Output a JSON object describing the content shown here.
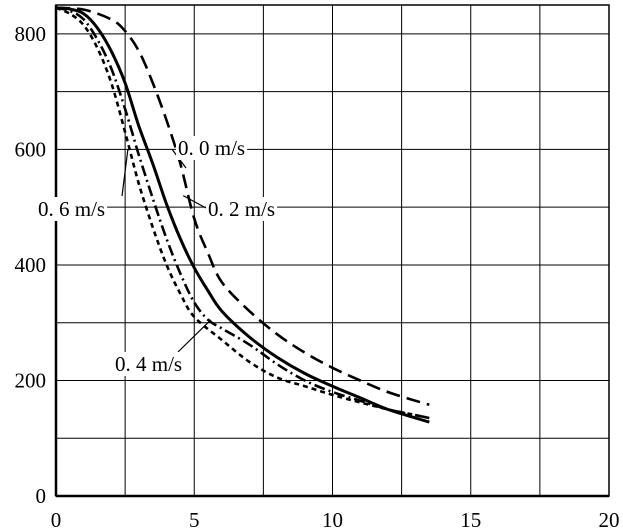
{
  "chart_data": {
    "type": "line",
    "title": "",
    "xlabel": "",
    "ylabel": "",
    "xlim": [
      0,
      20
    ],
    "ylim": [
      0,
      850
    ],
    "grid": true,
    "legend": "inline labels with leader lines",
    "x_ticks": [
      "0",
      "5",
      "10",
      "15",
      "20"
    ],
    "y_ticks": [
      "0",
      "200",
      "400",
      "600",
      "800"
    ],
    "series": [
      {
        "name": "0. 0 m/s",
        "style": "long-dash",
        "color": "#000000",
        "points": [
          [
            0,
            845
          ],
          [
            1,
            842
          ],
          [
            2,
            825
          ],
          [
            2.5,
            805
          ],
          [
            3,
            770
          ],
          [
            3.5,
            715
          ],
          [
            4,
            650
          ],
          [
            4.5,
            575
          ],
          [
            5,
            480
          ],
          [
            5.5,
            420
          ],
          [
            6,
            370
          ],
          [
            7,
            320
          ],
          [
            8,
            280
          ],
          [
            9,
            248
          ],
          [
            10,
            222
          ],
          [
            11,
            200
          ],
          [
            12,
            180
          ],
          [
            13,
            165
          ],
          [
            13.5,
            158
          ]
        ]
      },
      {
        "name": "0. 2 m/s",
        "style": "solid",
        "color": "#000000",
        "points": [
          [
            0,
            845
          ],
          [
            0.5,
            843
          ],
          [
            1,
            835
          ],
          [
            1.5,
            810
          ],
          [
            2,
            770
          ],
          [
            2.5,
            715
          ],
          [
            3,
            640
          ],
          [
            3.5,
            575
          ],
          [
            4,
            505
          ],
          [
            4.5,
            445
          ],
          [
            5,
            395
          ],
          [
            5.5,
            355
          ],
          [
            6,
            320
          ],
          [
            7,
            275
          ],
          [
            8,
            240
          ],
          [
            9,
            212
          ],
          [
            10,
            190
          ],
          [
            11,
            170
          ],
          [
            12,
            150
          ],
          [
            13,
            135
          ],
          [
            13.5,
            128
          ]
        ]
      },
      {
        "name": "0. 4 m/s",
        "style": "dash-dot",
        "color": "#000000",
        "points": [
          [
            0,
            845
          ],
          [
            0.5,
            840
          ],
          [
            1,
            825
          ],
          [
            1.5,
            790
          ],
          [
            2,
            740
          ],
          [
            2.5,
            670
          ],
          [
            3,
            590
          ],
          [
            3.5,
            515
          ],
          [
            4,
            445
          ],
          [
            4.5,
            385
          ],
          [
            5,
            335
          ],
          [
            5.5,
            305
          ],
          [
            6,
            290
          ],
          [
            7,
            262
          ],
          [
            8,
            228
          ],
          [
            9,
            200
          ],
          [
            10,
            180
          ],
          [
            11,
            165
          ],
          [
            12,
            150
          ],
          [
            13,
            140
          ],
          [
            13.5,
            135
          ]
        ]
      },
      {
        "name": "0. 6 m/s",
        "style": "short-dash",
        "color": "#000000",
        "points": [
          [
            0,
            845
          ],
          [
            0.5,
            835
          ],
          [
            1,
            815
          ],
          [
            1.5,
            775
          ],
          [
            2,
            715
          ],
          [
            2.5,
            630
          ],
          [
            3,
            540
          ],
          [
            3.5,
            465
          ],
          [
            4,
            400
          ],
          [
            4.5,
            350
          ],
          [
            5,
            310
          ],
          [
            6,
            270
          ],
          [
            7,
            232
          ],
          [
            8,
            205
          ],
          [
            9,
            190
          ],
          [
            10,
            175
          ],
          [
            11,
            162
          ],
          [
            12,
            150
          ],
          [
            13,
            140
          ],
          [
            13.5,
            135
          ]
        ]
      }
    ],
    "annotations": [
      {
        "text": "0. 0 m/s",
        "target_series": "0. 0 m/s",
        "target_point": [
          4.2,
          600
        ]
      },
      {
        "text": "0. 2 m/s",
        "target_series": "0. 2 m/s",
        "target_point": [
          4.6,
          520
        ]
      },
      {
        "text": "0. 6 m/s",
        "target_series": "0. 6 m/s",
        "target_point": [
          2.6,
          600
        ]
      },
      {
        "text": "0. 4 m/s",
        "target_series": "0. 4 m/s",
        "target_point": [
          5.6,
          305
        ]
      }
    ]
  }
}
